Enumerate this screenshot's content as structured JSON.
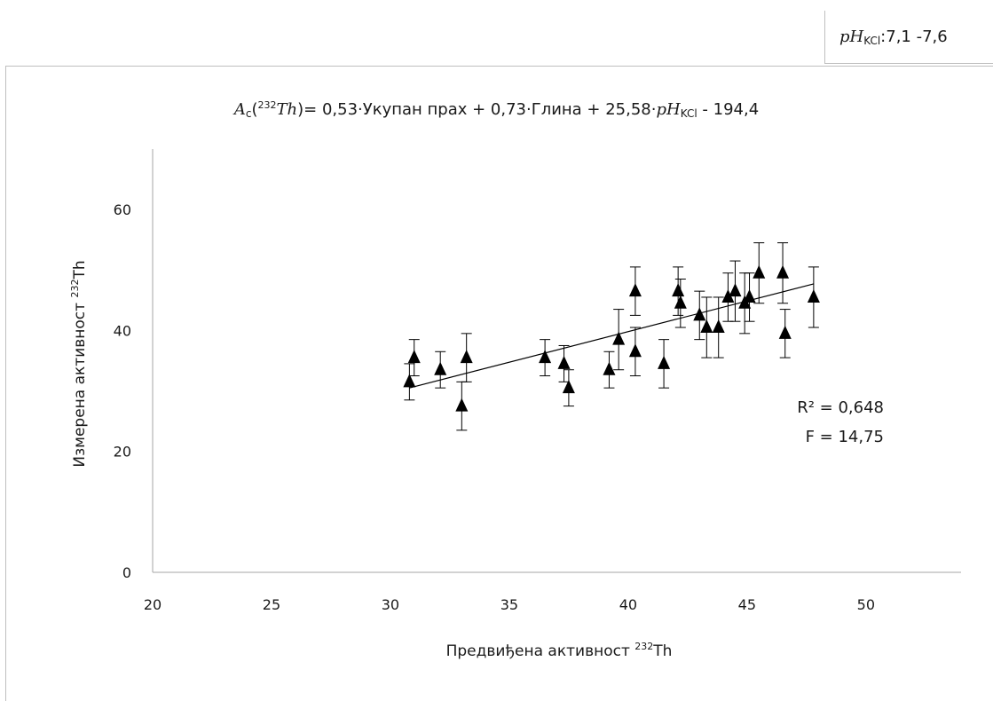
{
  "inset_label": {
    "var": "pH",
    "sub": "KCl",
    "range": ":7,1 -7,6"
  },
  "equation": {
    "lhs_var": "A",
    "lhs_sub": "c",
    "lhs_sup": "232",
    "lhs_el": "Th",
    "terms": "= 0,53·Укупан прах + 0,73·Глина + 25,58·",
    "ph_var": "pH",
    "ph_sub": "KCl",
    "const": " - 194,4"
  },
  "chart_data": {
    "type": "scatter",
    "xlabel_text": "Предвиђена активност ",
    "xlabel_sup": "232",
    "xlabel_el": "Th",
    "ylabel_text": "Измерена активност ",
    "ylabel_sup": "232",
    "ylabel_el": "Th",
    "xlim": [
      20,
      54
    ],
    "ylim": [
      0,
      70
    ],
    "xticks": [
      20,
      25,
      30,
      35,
      40,
      45,
      50
    ],
    "yticks": [
      0,
      20,
      40,
      60
    ],
    "marker": "triangle",
    "color": "#000000",
    "points": [
      {
        "x": 30.8,
        "y": 31.5,
        "err": 3
      },
      {
        "x": 31.0,
        "y": 35.5,
        "err": 3
      },
      {
        "x": 32.1,
        "y": 33.5,
        "err": 3
      },
      {
        "x": 33.0,
        "y": 27.5,
        "err": 4
      },
      {
        "x": 33.2,
        "y": 35.5,
        "err": 4
      },
      {
        "x": 36.5,
        "y": 35.5,
        "err": 3
      },
      {
        "x": 37.3,
        "y": 34.5,
        "err": 3
      },
      {
        "x": 37.5,
        "y": 30.5,
        "err": 3
      },
      {
        "x": 39.2,
        "y": 33.5,
        "err": 3
      },
      {
        "x": 39.6,
        "y": 38.5,
        "err": 5
      },
      {
        "x": 40.3,
        "y": 46.5,
        "err": 4
      },
      {
        "x": 40.3,
        "y": 36.5,
        "err": 4
      },
      {
        "x": 41.5,
        "y": 34.5,
        "err": 4
      },
      {
        "x": 42.1,
        "y": 46.5,
        "err": 4
      },
      {
        "x": 42.2,
        "y": 44.5,
        "err": 4
      },
      {
        "x": 43.0,
        "y": 42.5,
        "err": 4
      },
      {
        "x": 43.3,
        "y": 40.5,
        "err": 5
      },
      {
        "x": 43.8,
        "y": 40.5,
        "err": 5
      },
      {
        "x": 44.2,
        "y": 45.5,
        "err": 4
      },
      {
        "x": 44.5,
        "y": 46.5,
        "err": 5
      },
      {
        "x": 44.9,
        "y": 44.5,
        "err": 5
      },
      {
        "x": 45.1,
        "y": 45.5,
        "err": 4
      },
      {
        "x": 45.5,
        "y": 49.5,
        "err": 5
      },
      {
        "x": 46.5,
        "y": 49.5,
        "err": 5
      },
      {
        "x": 46.6,
        "y": 39.5,
        "err": 4
      },
      {
        "x": 47.8,
        "y": 45.5,
        "err": 5
      }
    ],
    "trendline": {
      "x": [
        30.8,
        47.8
      ],
      "y": [
        30.5,
        47.7
      ]
    },
    "annotations": {
      "r2": "R² = 0,648",
      "f": "F = 14,75"
    }
  }
}
